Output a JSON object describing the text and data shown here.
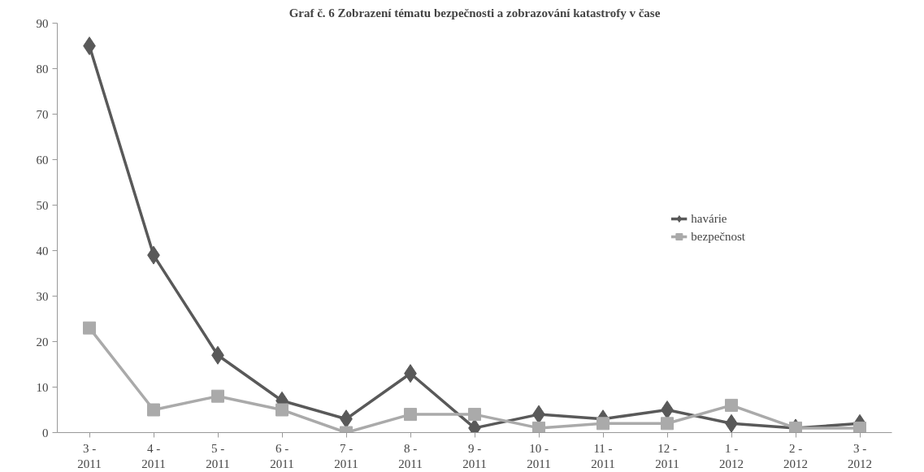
{
  "chart_data": {
    "type": "line",
    "title": "Graf č. 6 Zobrazení tématu bezpečnosti a zobrazování katastrofy v čase",
    "categories": [
      "3 -\n2011",
      "4 -\n2011",
      "5 -\n2011",
      "6 -\n2011",
      "7 -\n2011",
      "8 -\n2011",
      "9 -\n2011",
      "10 -\n2011",
      "11 -\n2011",
      "12 -\n2011",
      "1 -\n2012",
      "2 -\n2012",
      "3 -\n2012"
    ],
    "series": [
      {
        "name": "havárie",
        "color": "#595959",
        "marker": "diamond",
        "values": [
          85,
          39,
          17,
          7,
          3,
          13,
          1,
          4,
          3,
          5,
          2,
          1,
          2
        ]
      },
      {
        "name": "bezpečnost",
        "color": "#aaaaaa",
        "marker": "square",
        "values": [
          23,
          5,
          8,
          5,
          0,
          4,
          4,
          1,
          2,
          2,
          6,
          1,
          1
        ]
      }
    ],
    "ylim": [
      0,
      90
    ],
    "yticks": [
      0,
      10,
      20,
      30,
      40,
      50,
      60,
      70,
      80,
      90
    ],
    "grid": false,
    "legend": "right",
    "line_style": "solid"
  }
}
